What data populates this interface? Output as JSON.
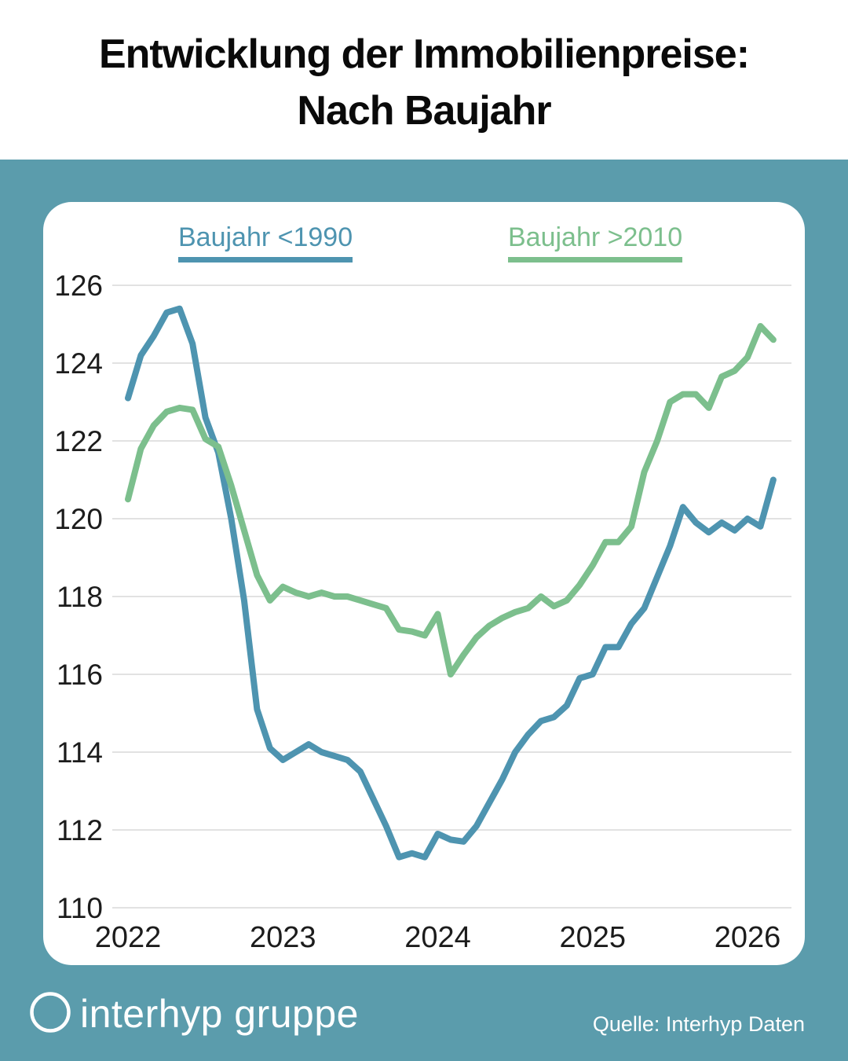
{
  "header": {
    "title_line1": "Entwicklung der Immobilienpreise:",
    "title_line2": "Nach Baujahr"
  },
  "footer": {
    "brand": "interhyp gruppe",
    "source": "Quelle: Interhyp Daten"
  },
  "colors": {
    "background_teal": "#5B9CAC",
    "card_white": "#ffffff",
    "series_blue": "#4E94B0",
    "series_green": "#7CBF8D",
    "gridline": "#d9d9d9",
    "axis_text": "#1c1c1c",
    "title_text": "#0a0a0a",
    "footer_text": "#ffffff"
  },
  "chart_data": {
    "type": "line",
    "title": "Entwicklung der Immobilienpreise: Nach Baujahr",
    "xlabel": "",
    "ylabel": "",
    "ylim": [
      110,
      126.5
    ],
    "grid": "horizontal",
    "legend_position": "top",
    "y_ticks": [
      126,
      124,
      122,
      120,
      118,
      116,
      114,
      112,
      110
    ],
    "x_ticks": [
      "2022",
      "2023",
      "2024",
      "2025",
      "2026"
    ],
    "x": [
      "2022-01",
      "2022-02",
      "2022-03",
      "2022-04",
      "2022-05",
      "2022-06",
      "2022-07",
      "2022-08",
      "2022-09",
      "2022-10",
      "2022-11",
      "2022-12",
      "2023-01",
      "2023-02",
      "2023-03",
      "2023-04",
      "2023-05",
      "2023-06",
      "2023-07",
      "2023-08",
      "2023-09",
      "2023-10",
      "2023-11",
      "2023-12",
      "2024-01",
      "2024-02",
      "2024-03",
      "2024-04",
      "2024-05",
      "2024-06",
      "2024-07",
      "2024-08",
      "2024-09",
      "2024-10",
      "2024-11",
      "2024-12",
      "2025-01",
      "2025-02",
      "2025-03",
      "2025-04",
      "2025-05",
      "2025-06",
      "2025-07",
      "2025-08",
      "2025-09",
      "2025-10",
      "2025-11",
      "2025-12",
      "2026-01",
      "2026-02",
      "2026-03"
    ],
    "series": [
      {
        "name": "Baujahr <1990",
        "color_key": "series_blue",
        "values": [
          123.1,
          124.2,
          124.7,
          125.3,
          125.4,
          124.5,
          122.6,
          121.7,
          120.0,
          117.9,
          115.1,
          114.1,
          113.8,
          114.0,
          114.2,
          114.0,
          113.9,
          113.8,
          113.5,
          112.8,
          112.1,
          111.3,
          111.4,
          111.3,
          111.9,
          111.75,
          111.7,
          112.1,
          112.7,
          113.3,
          114.0,
          114.45,
          114.8,
          114.9,
          115.2,
          115.9,
          116.0,
          116.7,
          116.7,
          117.3,
          117.7,
          118.5,
          119.3,
          120.3,
          119.9,
          119.65,
          119.9,
          119.7,
          120.0,
          119.8,
          121.0
        ]
      },
      {
        "name": "Baujahr >2010",
        "color_key": "series_green",
        "values": [
          120.5,
          121.8,
          122.4,
          122.75,
          122.85,
          122.8,
          122.05,
          121.85,
          120.85,
          119.7,
          118.55,
          117.9,
          118.25,
          118.1,
          118.0,
          118.1,
          118.0,
          118.0,
          117.9,
          117.8,
          117.7,
          117.15,
          117.1,
          117.0,
          117.55,
          116.0,
          116.5,
          116.95,
          117.25,
          117.45,
          117.6,
          117.7,
          118.0,
          117.75,
          117.9,
          118.3,
          118.8,
          119.4,
          119.4,
          119.8,
          121.2,
          122.0,
          123.0,
          123.2,
          123.2,
          122.85,
          123.65,
          123.8,
          124.15,
          124.95,
          124.6
        ]
      }
    ]
  }
}
